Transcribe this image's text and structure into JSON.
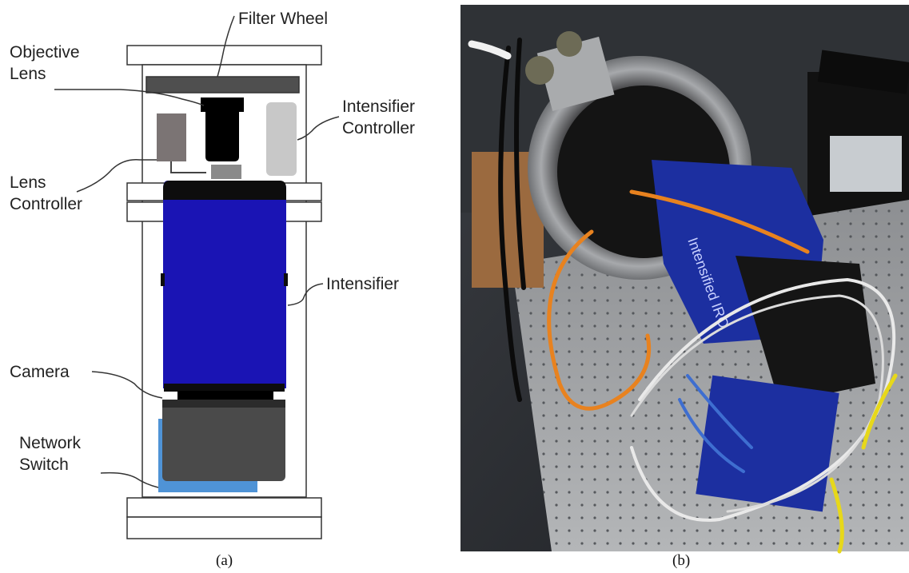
{
  "diagram": {
    "labels": {
      "filter_wheel": "Filter Wheel",
      "objective_lens": [
        "Objective",
        "Lens"
      ],
      "intensifier_controller": [
        "Intensifier",
        "Controller"
      ],
      "lens_controller": [
        "Lens",
        "Controller"
      ],
      "intensifier": "Intensifier",
      "camera": "Camera",
      "network_switch": [
        "Network",
        "Switch"
      ]
    },
    "colors": {
      "intensifier": "#1a14b4",
      "network_switch": "#4f93d6",
      "camera": "#4a4a4a",
      "filter_wheel": "#4f4f4f",
      "lens_controller": "#7b7474",
      "intensifier_controller": "#c8c8c8"
    }
  },
  "photo": {
    "camera_body_text": "Intensified IRO",
    "colors": {
      "camera_body": "#1c2fa0",
      "cable_orange": "#e8821f",
      "table": "#9a9c9e"
    }
  },
  "captions": {
    "a": "(a)",
    "b": "(b)"
  }
}
